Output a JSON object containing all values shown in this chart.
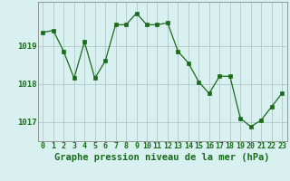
{
  "x": [
    0,
    1,
    2,
    3,
    4,
    5,
    6,
    7,
    8,
    9,
    10,
    11,
    12,
    13,
    14,
    15,
    16,
    17,
    18,
    19,
    20,
    21,
    22,
    23
  ],
  "y": [
    1019.35,
    1019.4,
    1018.85,
    1018.15,
    1019.1,
    1018.15,
    1018.6,
    1019.55,
    1019.55,
    1019.85,
    1019.55,
    1019.55,
    1019.6,
    1018.85,
    1018.55,
    1018.05,
    1017.75,
    1018.2,
    1018.2,
    1017.1,
    1016.88,
    1017.05,
    1017.4,
    1017.75
  ],
  "line_color": "#1a6b1a",
  "marker_color": "#1a6b1a",
  "bg_color": "#d8f0f0",
  "grid_color": "#b0c8c8",
  "xlabel": "Graphe pression niveau de la mer (hPa)",
  "ylim": [
    1016.5,
    1020.15
  ],
  "yticks": [
    1017,
    1018,
    1019
  ],
  "xticks": [
    0,
    1,
    2,
    3,
    4,
    5,
    6,
    7,
    8,
    9,
    10,
    11,
    12,
    13,
    14,
    15,
    16,
    17,
    18,
    19,
    20,
    21,
    22,
    23
  ],
  "label_fontsize": 6.5,
  "xlabel_fontsize": 7.5,
  "tick_color": "#1a6b1a",
  "axis_color": "#888888"
}
